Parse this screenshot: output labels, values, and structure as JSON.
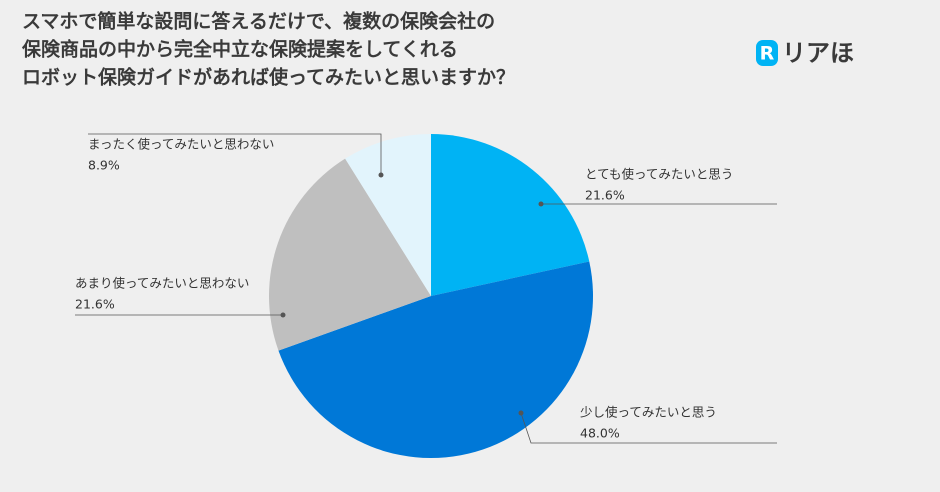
{
  "chart_data": {
    "type": "pie",
    "title": [
      "スマホで簡単な設問に答えるだけで、複数の保険会社の",
      "保険商品の中から完全中立な保険提案をしてくれる",
      "ロボット保険ガイドがあれば使ってみたいと思いますか？"
    ],
    "logo": {
      "mark": "R",
      "text": "リアほ"
    },
    "categories": [
      "とても使ってみたいと思う",
      "少し使ってみたいと思う",
      "あまり使ってみたいと思わない",
      "まったく使ってみたいと思わない"
    ],
    "values": [
      21.6,
      48.0,
      21.6,
      8.9
    ],
    "value_labels": [
      "21.6%",
      "48.0%",
      "21.6%",
      "8.9%"
    ],
    "colors": [
      "#00b3f4",
      "#0078d7",
      "#bfbfbf",
      "#e2f4fc"
    ]
  }
}
